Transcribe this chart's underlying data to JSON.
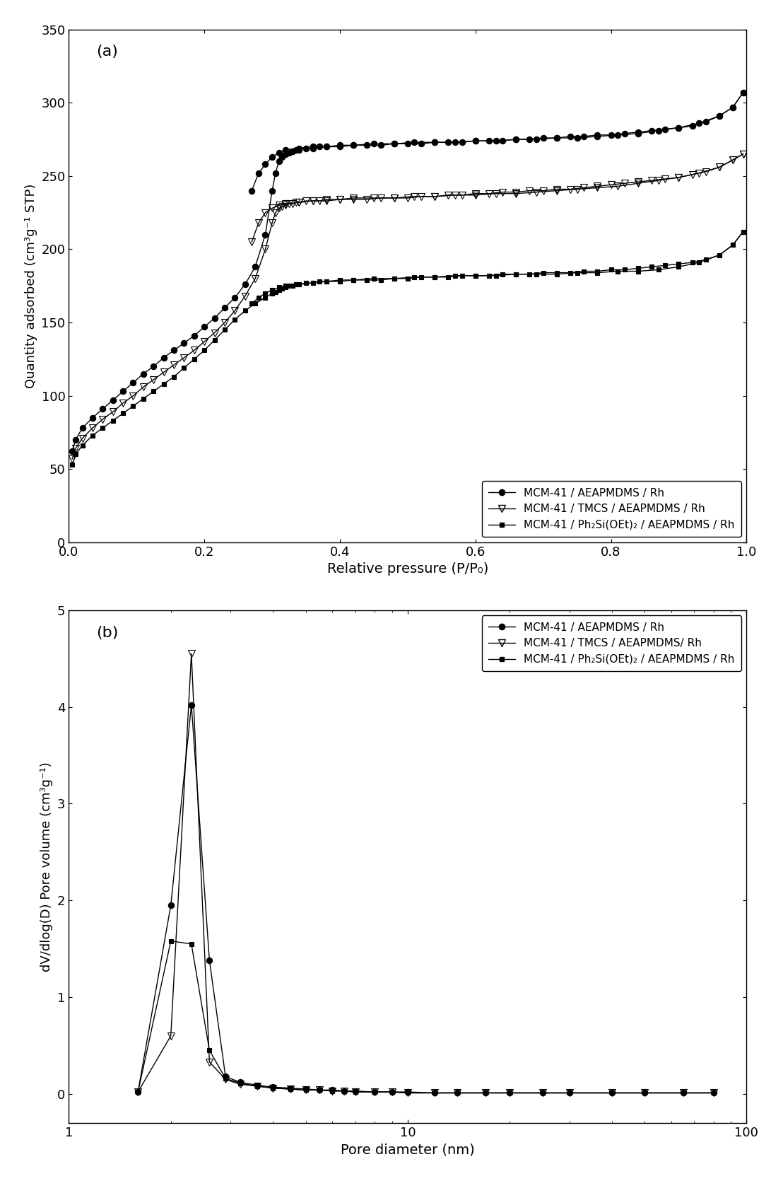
{
  "panel_a": {
    "title": "(a)",
    "xlabel": "Relative pressure (P/P₀)",
    "ylabel": "Quantity adsorbed (cm³g⁻¹ STP)",
    "xlim": [
      0.0,
      1.0
    ],
    "ylim": [
      0,
      350
    ],
    "yticks": [
      0,
      50,
      100,
      150,
      200,
      250,
      300,
      350
    ],
    "xticks": [
      0.0,
      0.2,
      0.4,
      0.6,
      0.8,
      1.0
    ],
    "series": [
      {
        "label": "MCM-41 / AEAPMDMS / Rh",
        "marker": "o",
        "fillstyle": "full",
        "adsorption_x": [
          0.005,
          0.01,
          0.02,
          0.035,
          0.05,
          0.065,
          0.08,
          0.095,
          0.11,
          0.125,
          0.14,
          0.155,
          0.17,
          0.185,
          0.2,
          0.215,
          0.23,
          0.245,
          0.26,
          0.275,
          0.29,
          0.3,
          0.305,
          0.31,
          0.315,
          0.32,
          0.325,
          0.33,
          0.335,
          0.34,
          0.35,
          0.36,
          0.37,
          0.38,
          0.4,
          0.42,
          0.45,
          0.48,
          0.51,
          0.54,
          0.57,
          0.6,
          0.63,
          0.66,
          0.69,
          0.72,
          0.75,
          0.78,
          0.81,
          0.84,
          0.87,
          0.9,
          0.93,
          0.96,
          0.98,
          0.995
        ],
        "adsorption_y": [
          62,
          70,
          78,
          85,
          91,
          97,
          103,
          109,
          115,
          120,
          126,
          131,
          136,
          141,
          147,
          153,
          160,
          167,
          176,
          188,
          210,
          240,
          252,
          260,
          263,
          265,
          266,
          267,
          268,
          268,
          269,
          269,
          270,
          270,
          271,
          271,
          272,
          272,
          273,
          273,
          273,
          274,
          274,
          275,
          275,
          276,
          276,
          277,
          278,
          279,
          281,
          283,
          286,
          291,
          297,
          307
        ],
        "desorption_x": [
          0.995,
          0.98,
          0.96,
          0.94,
          0.92,
          0.9,
          0.88,
          0.86,
          0.84,
          0.82,
          0.8,
          0.78,
          0.76,
          0.74,
          0.72,
          0.7,
          0.68,
          0.66,
          0.64,
          0.62,
          0.6,
          0.58,
          0.56,
          0.54,
          0.52,
          0.5,
          0.48,
          0.46,
          0.44,
          0.42,
          0.4,
          0.38,
          0.36,
          0.34,
          0.32,
          0.31,
          0.3,
          0.29,
          0.28,
          0.27
        ],
        "desorption_y": [
          307,
          297,
          291,
          287,
          284,
          283,
          282,
          281,
          280,
          279,
          278,
          278,
          277,
          277,
          276,
          276,
          275,
          275,
          274,
          274,
          274,
          273,
          273,
          273,
          272,
          272,
          272,
          271,
          271,
          271,
          270,
          270,
          270,
          269,
          268,
          266,
          263,
          258,
          252,
          240
        ]
      },
      {
        "label": "MCM-41 / TMCS / AEAPMDMS / Rh",
        "marker": "v",
        "fillstyle": "none",
        "adsorption_x": [
          0.005,
          0.01,
          0.02,
          0.035,
          0.05,
          0.065,
          0.08,
          0.095,
          0.11,
          0.125,
          0.14,
          0.155,
          0.17,
          0.185,
          0.2,
          0.215,
          0.23,
          0.245,
          0.26,
          0.275,
          0.29,
          0.3,
          0.305,
          0.31,
          0.315,
          0.32,
          0.325,
          0.33,
          0.335,
          0.34,
          0.35,
          0.36,
          0.37,
          0.38,
          0.4,
          0.42,
          0.45,
          0.48,
          0.51,
          0.54,
          0.57,
          0.6,
          0.63,
          0.66,
          0.69,
          0.72,
          0.75,
          0.78,
          0.81,
          0.84,
          0.87,
          0.9,
          0.93,
          0.96,
          0.98,
          0.995
        ],
        "adsorption_y": [
          57,
          64,
          71,
          78,
          84,
          89,
          95,
          100,
          106,
          111,
          116,
          121,
          126,
          131,
          137,
          143,
          150,
          158,
          168,
          180,
          200,
          218,
          225,
          228,
          229,
          230,
          231,
          231,
          232,
          232,
          233,
          233,
          233,
          234,
          234,
          235,
          235,
          235,
          236,
          236,
          237,
          237,
          238,
          238,
          239,
          240,
          241,
          242,
          243,
          245,
          247,
          249,
          252,
          256,
          261,
          265
        ],
        "desorption_x": [
          0.995,
          0.98,
          0.96,
          0.94,
          0.92,
          0.9,
          0.88,
          0.86,
          0.84,
          0.82,
          0.8,
          0.78,
          0.76,
          0.74,
          0.72,
          0.7,
          0.68,
          0.66,
          0.64,
          0.62,
          0.6,
          0.58,
          0.56,
          0.54,
          0.52,
          0.5,
          0.48,
          0.46,
          0.44,
          0.42,
          0.4,
          0.38,
          0.36,
          0.34,
          0.32,
          0.31,
          0.3,
          0.29,
          0.28,
          0.27
        ],
        "desorption_y": [
          265,
          261,
          256,
          253,
          251,
          249,
          248,
          247,
          246,
          245,
          244,
          243,
          242,
          241,
          241,
          240,
          240,
          239,
          239,
          238,
          238,
          237,
          237,
          236,
          236,
          235,
          235,
          235,
          234,
          234,
          234,
          233,
          233,
          232,
          231,
          230,
          228,
          225,
          218,
          205
        ]
      },
      {
        "label": "MCM-41 / Ph₂Si(OEt)₂ / AEAPMDMS / Rh",
        "marker": "s",
        "fillstyle": "full",
        "adsorption_x": [
          0.005,
          0.01,
          0.02,
          0.035,
          0.05,
          0.065,
          0.08,
          0.095,
          0.11,
          0.125,
          0.14,
          0.155,
          0.17,
          0.185,
          0.2,
          0.215,
          0.23,
          0.245,
          0.26,
          0.275,
          0.29,
          0.3,
          0.305,
          0.31,
          0.315,
          0.32,
          0.325,
          0.33,
          0.335,
          0.34,
          0.35,
          0.36,
          0.37,
          0.38,
          0.4,
          0.42,
          0.45,
          0.48,
          0.51,
          0.54,
          0.57,
          0.6,
          0.63,
          0.66,
          0.69,
          0.72,
          0.75,
          0.78,
          0.81,
          0.84,
          0.87,
          0.9,
          0.93,
          0.96,
          0.98,
          0.995
        ],
        "adsorption_y": [
          53,
          60,
          66,
          73,
          78,
          83,
          88,
          93,
          98,
          103,
          108,
          113,
          119,
          125,
          131,
          138,
          145,
          152,
          158,
          163,
          167,
          170,
          171,
          172,
          173,
          174,
          175,
          175,
          176,
          176,
          177,
          177,
          178,
          178,
          179,
          179,
          180,
          180,
          181,
          181,
          182,
          182,
          182,
          183,
          183,
          183,
          184,
          184,
          185,
          185,
          186,
          188,
          191,
          196,
          203,
          212
        ],
        "desorption_x": [
          0.995,
          0.98,
          0.96,
          0.94,
          0.92,
          0.9,
          0.88,
          0.86,
          0.84,
          0.82,
          0.8,
          0.78,
          0.76,
          0.74,
          0.72,
          0.7,
          0.68,
          0.66,
          0.64,
          0.62,
          0.6,
          0.58,
          0.56,
          0.54,
          0.52,
          0.5,
          0.48,
          0.46,
          0.44,
          0.42,
          0.4,
          0.38,
          0.36,
          0.34,
          0.32,
          0.31,
          0.3,
          0.29,
          0.28,
          0.27
        ],
        "desorption_y": [
          212,
          203,
          196,
          193,
          191,
          190,
          189,
          188,
          187,
          186,
          186,
          185,
          185,
          184,
          184,
          184,
          183,
          183,
          183,
          182,
          182,
          182,
          181,
          181,
          181,
          180,
          180,
          179,
          179,
          179,
          178,
          178,
          177,
          176,
          175,
          174,
          172,
          170,
          167,
          163
        ]
      }
    ]
  },
  "panel_b": {
    "title": "(b)",
    "xlabel": "Pore diameter (nm)",
    "ylabel": "dV/dlog(D) Pore volume (cm³g⁻¹)",
    "xlim": [
      1,
      100
    ],
    "ylim": [
      -0.3,
      5
    ],
    "yticks": [
      0,
      1,
      2,
      3,
      4,
      5
    ],
    "series": [
      {
        "label": "MCM-41 / AEAPMDMS / Rh",
        "marker": "o",
        "fillstyle": "full",
        "x": [
          1.6,
          2.0,
          2.3,
          2.6,
          2.9,
          3.2,
          3.6,
          4.0,
          4.5,
          5.0,
          5.5,
          6.0,
          6.5,
          7.0,
          8.0,
          9.0,
          10.0,
          12.0,
          14.0,
          17.0,
          20.0,
          25.0,
          30.0,
          40.0,
          50.0,
          65.0,
          80.0
        ],
        "y": [
          0.02,
          1.95,
          4.02,
          1.38,
          0.18,
          0.12,
          0.09,
          0.07,
          0.06,
          0.05,
          0.04,
          0.04,
          0.03,
          0.03,
          0.02,
          0.02,
          0.02,
          0.01,
          0.01,
          0.01,
          0.01,
          0.01,
          0.01,
          0.01,
          0.01,
          0.01,
          0.01
        ]
      },
      {
        "label": "MCM-41 / TMCS / AEAPMDMS/ Rh",
        "marker": "v",
        "fillstyle": "none",
        "x": [
          1.6,
          2.0,
          2.3,
          2.6,
          2.9,
          3.2,
          3.6,
          4.0,
          4.5,
          5.0,
          5.5,
          6.0,
          6.5,
          7.0,
          8.0,
          9.0,
          10.0,
          12.0,
          14.0,
          17.0,
          20.0,
          25.0,
          30.0,
          40.0,
          50.0,
          65.0,
          80.0
        ],
        "y": [
          0.02,
          0.6,
          4.55,
          0.33,
          0.15,
          0.1,
          0.08,
          0.06,
          0.05,
          0.04,
          0.04,
          0.03,
          0.03,
          0.02,
          0.02,
          0.02,
          0.01,
          0.01,
          0.01,
          0.01,
          0.01,
          0.01,
          0.01,
          0.01,
          0.01,
          0.01,
          0.01
        ]
      },
      {
        "label": "MCM-41 / Ph₂Si(OEt)₂ / AEAPMDMS / Rh",
        "marker": "s",
        "fillstyle": "full",
        "x": [
          1.6,
          2.0,
          2.3,
          2.6,
          2.9,
          3.2,
          3.6,
          4.0,
          4.5,
          5.0,
          5.5,
          6.0,
          6.5,
          7.0,
          8.0,
          9.0,
          10.0,
          12.0,
          14.0,
          17.0,
          20.0,
          25.0,
          30.0,
          40.0,
          50.0,
          65.0,
          80.0
        ],
        "y": [
          0.02,
          1.58,
          1.55,
          0.45,
          0.16,
          0.11,
          0.08,
          0.06,
          0.05,
          0.04,
          0.04,
          0.03,
          0.03,
          0.02,
          0.02,
          0.02,
          0.01,
          0.01,
          0.01,
          0.01,
          0.01,
          0.01,
          0.01,
          0.01,
          0.01,
          0.01,
          0.01
        ]
      }
    ]
  },
  "legend_labels_a": [
    "MCM-41 / AEAPMDMS / Rh",
    "MCM-41 / TMCS / AEAPMDMS / Rh",
    "MCM-41 / Ph₂Si(OEt)₂ / AEAPMDMS / Rh"
  ],
  "legend_labels_b": [
    "MCM-41 / AEAPMDMS / Rh",
    "MCM-41 / TMCS / AEAPMDMS/ Rh",
    "MCM-41 / Ph₂Si(OEt)₂ / AEAPMDMS / Rh"
  ],
  "bg_color": "#ffffff",
  "line_color": "#000000",
  "markersize_circle": 6,
  "markersize_triangle": 7,
  "markersize_square": 5,
  "linewidth": 1.0,
  "fontsize_label": 14,
  "fontsize_tick": 13,
  "fontsize_legend": 11,
  "fontsize_panel": 16
}
